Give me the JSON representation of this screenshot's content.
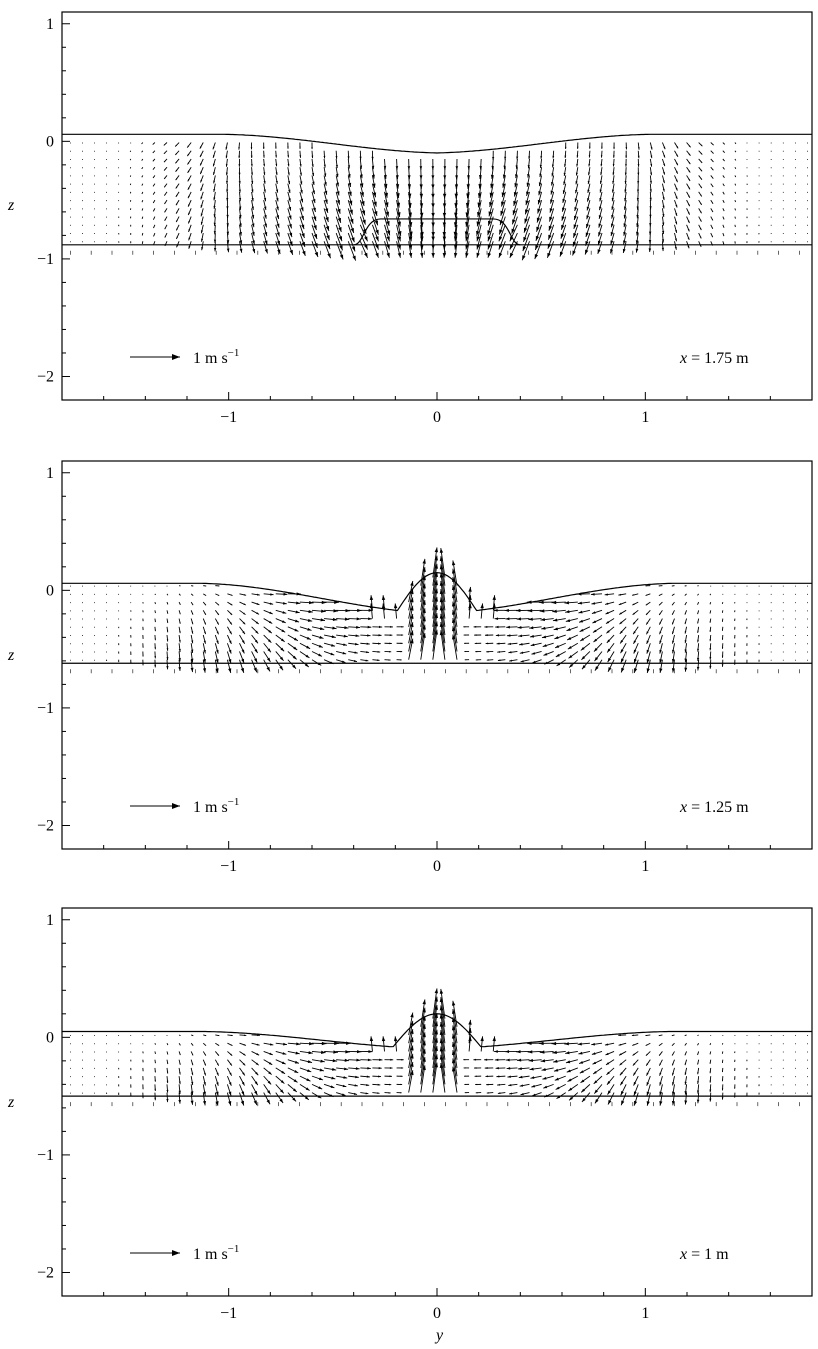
{
  "chart_data": [
    {
      "type": "quiver",
      "panel": "x = 1.75 m",
      "ylabel": "z",
      "xlabel": "",
      "xlim": [
        -1.8,
        1.8
      ],
      "ylim": [
        -2.2,
        1.1
      ],
      "xticks": [
        -1,
        0,
        1
      ],
      "yticks": [
        -2,
        -1,
        0,
        1
      ],
      "free_surface": {
        "far_level": 0.06,
        "centre_level": -0.1,
        "transition_y": 1.0
      },
      "bottom_level": -0.88,
      "inner_surface": {
        "level": -0.66,
        "half_width": 0.35
      },
      "reference_arrow": {
        "value": 1,
        "unit_label": "1 m s",
        "unit_exp": "−1"
      },
      "annotation": {
        "var": "x",
        "text": " = 1.75 m"
      },
      "flow_pattern": "downward-converging"
    },
    {
      "type": "quiver",
      "panel": "x = 1.25 m",
      "ylabel": "z",
      "xlabel": "",
      "xlim": [
        -1.8,
        1.8
      ],
      "ylim": [
        -2.2,
        1.1
      ],
      "xticks": [
        -1,
        0,
        1
      ],
      "yticks": [
        -2,
        -1,
        0,
        1
      ],
      "free_surface": {
        "far_level": 0.06,
        "centre_level": -0.2,
        "transition_y": 1.1
      },
      "bottom_level": -0.62,
      "central_jet": {
        "peak": 0.15,
        "half_width": 0.2
      },
      "reference_arrow": {
        "value": 1,
        "unit_label": "1 m s",
        "unit_exp": "−1"
      },
      "annotation": {
        "var": "x",
        "text": " = 1.25 m"
      },
      "flow_pattern": "inward-upward-jet"
    },
    {
      "type": "quiver",
      "panel": "x = 1 m",
      "ylabel": "z",
      "xlabel": "y",
      "xlim": [
        -1.8,
        1.8
      ],
      "ylim": [
        -2.2,
        1.1
      ],
      "xticks": [
        -1,
        0,
        1
      ],
      "yticks": [
        -2,
        -1,
        0,
        1
      ],
      "free_surface": {
        "far_level": 0.05,
        "centre_level": -0.1,
        "transition_y": 1.1
      },
      "bottom_level": -0.5,
      "central_jet": {
        "peak": 0.2,
        "half_width": 0.22
      },
      "reference_arrow": {
        "value": 1,
        "unit_label": "1 m s",
        "unit_exp": "−1"
      },
      "annotation": {
        "var": "x",
        "text": " = 1 m"
      },
      "flow_pattern": "inward-upward-jet"
    }
  ]
}
